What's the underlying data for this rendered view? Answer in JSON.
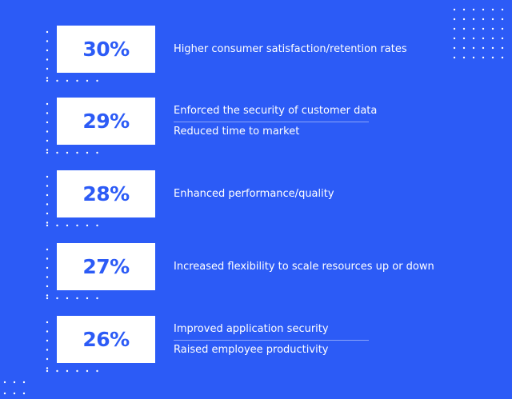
{
  "colors": {
    "background": "#2c5bf6",
    "box": "#ffffff",
    "percent_text": "#2c5bf6",
    "label_text": "#ffffff"
  },
  "stats": [
    {
      "percent": "30%",
      "labels": [
        "Higher consumer satisfaction/retention rates"
      ]
    },
    {
      "percent": "29%",
      "labels": [
        "Enforced the security of customer data",
        "Reduced time to market"
      ]
    },
    {
      "percent": "28%",
      "labels": [
        "Enhanced performance/quality"
      ]
    },
    {
      "percent": "27%",
      "labels": [
        "Increased flexibility to scale resources up or down"
      ]
    },
    {
      "percent": "26%",
      "labels": [
        "Improved application security",
        "Raised employee productivity"
      ]
    }
  ],
  "decorations": [
    "dot-grid-top-right",
    "dot-grid-bottom-left"
  ]
}
